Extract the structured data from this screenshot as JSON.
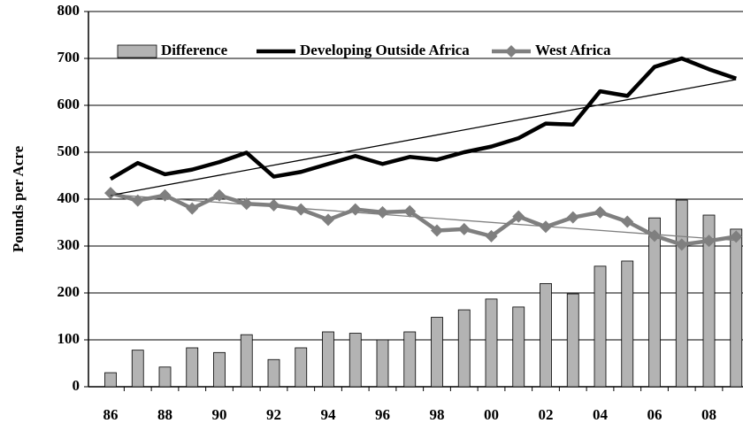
{
  "chart_data": {
    "type": "bar-line",
    "y_label": "Pounds per Acre",
    "categories": [
      "86",
      null,
      "88",
      null,
      "90",
      null,
      "92",
      null,
      "94",
      null,
      "96",
      null,
      "98",
      null,
      "00",
      null,
      "02",
      null,
      "04",
      null,
      "06",
      null,
      "08",
      null
    ],
    "series": [
      {
        "name": "Difference",
        "kind": "bar",
        "color": "#b3b3b3",
        "values": [
          30,
          78,
          42,
          83,
          73,
          111,
          58,
          83,
          117,
          114,
          100,
          117,
          148,
          164,
          187,
          170,
          220,
          198,
          257,
          268,
          360,
          398,
          366,
          336
        ]
      },
      {
        "name": "Developing Outside Africa",
        "kind": "line",
        "color": "#000000",
        "values": [
          443,
          477,
          453,
          463,
          479,
          499,
          448,
          458,
          475,
          492,
          475,
          490,
          484,
          500,
          512,
          530,
          561,
          559,
          630,
          620,
          682,
          700,
          677,
          657
        ]
      },
      {
        "name": "West Africa",
        "kind": "line-diamond",
        "color": "#7f7f7f",
        "values": [
          413,
          397,
          408,
          380,
          408,
          390,
          387,
          378,
          356,
          378,
          372,
          374,
          333,
          336,
          321,
          363,
          341,
          361,
          372,
          352,
          322,
          303,
          311,
          320
        ]
      }
    ],
    "trendlines": [
      {
        "color": "#000000",
        "values": [
          408,
          655
        ]
      },
      {
        "color": "#7f7f7f",
        "values": [
          410,
          312
        ]
      }
    ],
    "ylim": [
      0,
      800
    ],
    "yticks": [
      0,
      100,
      200,
      300,
      400,
      500,
      600,
      700,
      800
    ],
    "grid": true
  }
}
